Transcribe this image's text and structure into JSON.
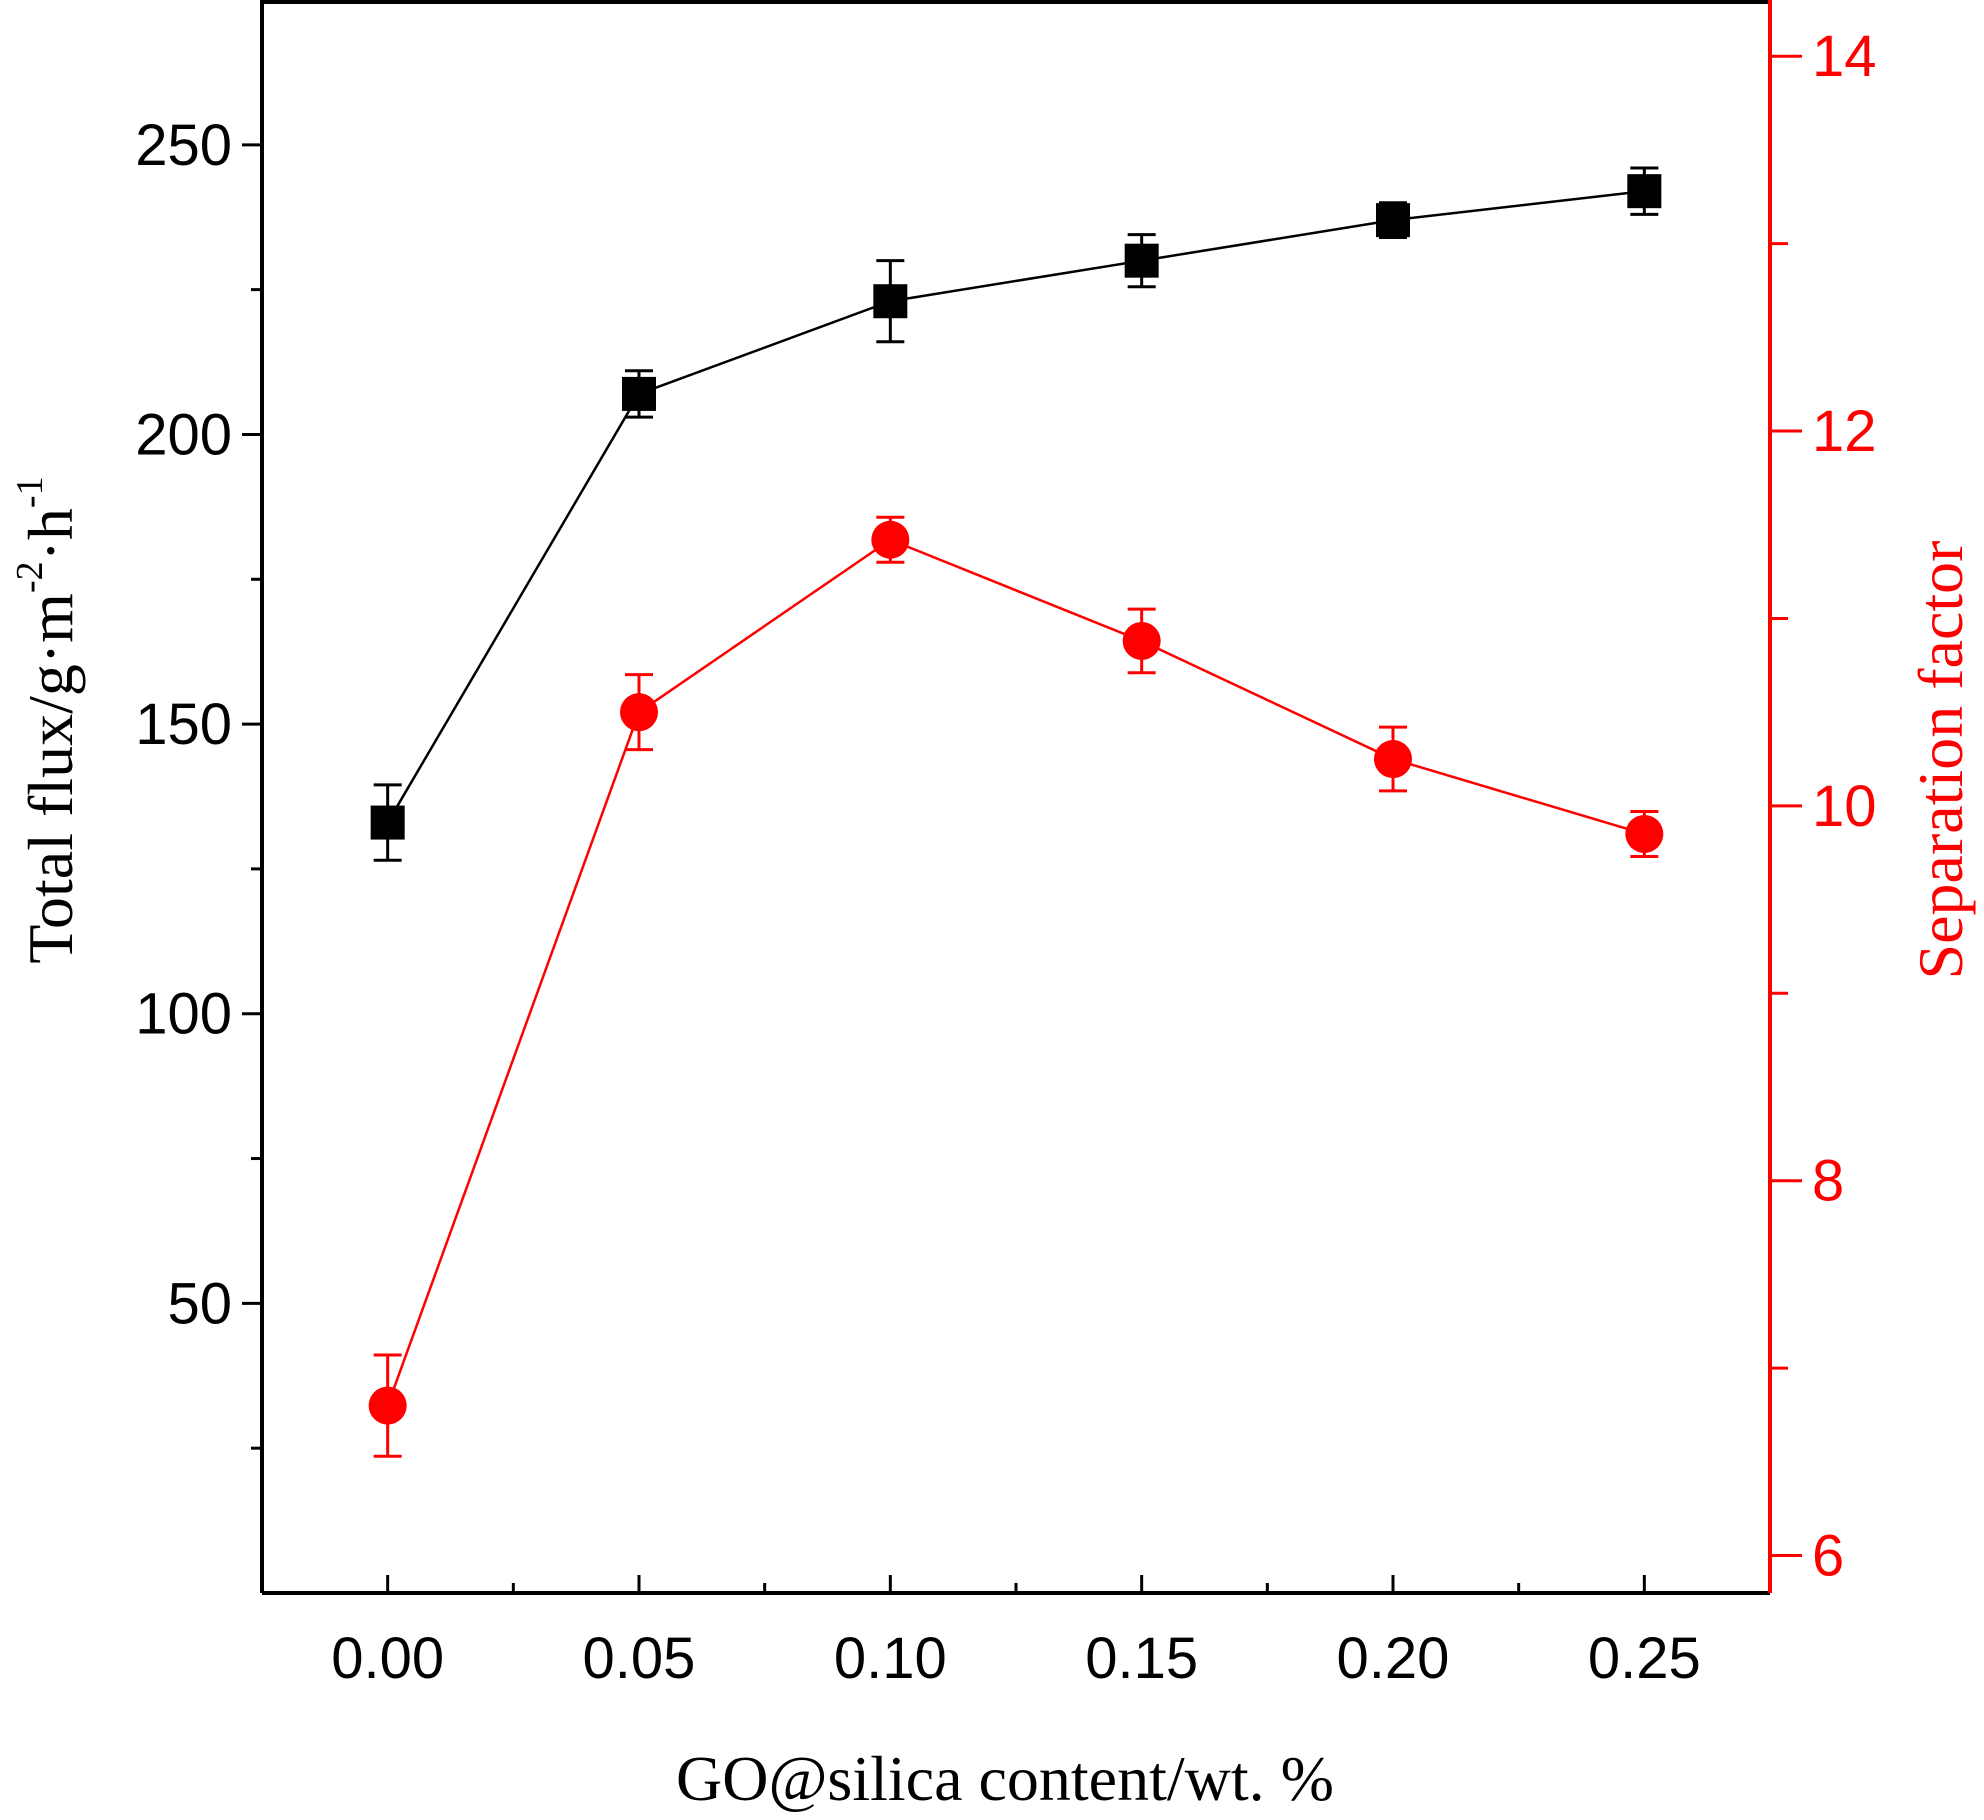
{
  "chart_data": {
    "type": "line",
    "x": [
      0.0,
      0.05,
      0.1,
      0.15,
      0.2,
      0.25
    ],
    "x_tick_labels": [
      "0.00",
      "0.05",
      "0.10",
      "0.15",
      "0.20",
      "0.25"
    ],
    "xlabel": "GO@silica content/wt. %",
    "xlim": [
      -0.025,
      0.275
    ],
    "grid": false,
    "left_axis": {
      "label_main": "Total flux/g·m",
      "label_sup1": "-2",
      "label_mid": "·h",
      "label_sup2": "-1",
      "ylim": [
        0,
        275
      ],
      "ticks": [
        50,
        100,
        150,
        200,
        250
      ],
      "tick_labels": [
        "50",
        "100",
        "150",
        "200",
        "250"
      ],
      "color": "#000000"
    },
    "right_axis": {
      "label": "Separation factor",
      "ylim": [
        5.8,
        14.3
      ],
      "ticks": [
        6,
        8,
        10,
        12,
        14
      ],
      "tick_labels": [
        "6",
        "8",
        "10",
        "12",
        "14"
      ],
      "color": "#ff0000"
    },
    "series": [
      {
        "axis": "left",
        "marker": "square",
        "color": "#000000",
        "values": [
          133,
          207,
          223,
          230,
          237,
          242
        ],
        "errors": [
          6.5,
          4,
          7,
          4.5,
          3,
          4
        ]
      },
      {
        "axis": "right",
        "marker": "circle",
        "color": "#ff0000",
        "values": [
          6.8,
          10.5,
          11.42,
          10.88,
          10.25,
          9.85
        ],
        "errors": [
          0.27,
          0.2,
          0.12,
          0.17,
          0.17,
          0.12
        ]
      }
    ]
  }
}
